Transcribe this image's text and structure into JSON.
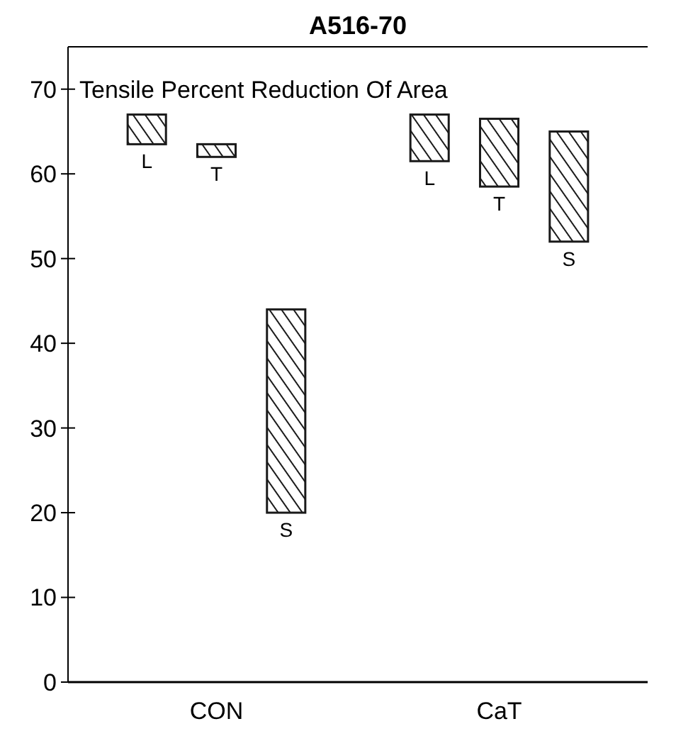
{
  "chart_data": {
    "type": "bar",
    "title": "A516-70",
    "subtitle": "Tensile Percent Reduction Of Area",
    "categories": [
      "CON",
      "CaT"
    ],
    "series": [
      {
        "name": "L",
        "color": "#1a1a1a",
        "base": [
          63.5,
          61.5
        ],
        "values": [
          3.5,
          5.5
        ]
      },
      {
        "name": "T",
        "color": "#1a1a1a",
        "base": [
          62,
          58.5
        ],
        "values": [
          1.5,
          8
        ]
      },
      {
        "name": "S",
        "color": "#1a1a1a",
        "base": [
          20,
          52
        ],
        "values": [
          24,
          13
        ]
      }
    ],
    "ylim": [
      0,
      75
    ],
    "yticks": [
      0,
      10,
      20,
      30,
      40,
      50,
      60,
      70
    ],
    "grid": false
  }
}
